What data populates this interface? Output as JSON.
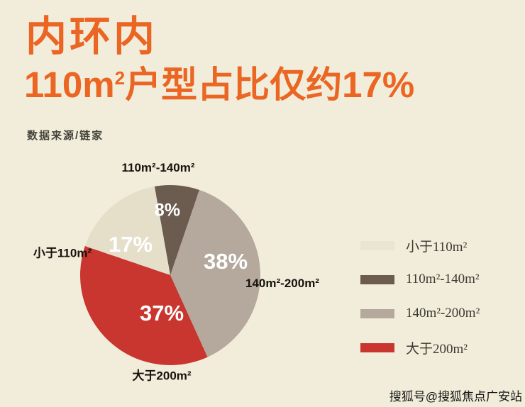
{
  "theme": {
    "background": "#f2edda",
    "accent": "#eb6523",
    "label_color": "#16120e",
    "pct_label_color": "#ffffff"
  },
  "header": {
    "title": "内环内",
    "subtitle_num": "110m",
    "subtitle_sup": "2",
    "subtitle_rest": "户型占比仅约17%",
    "source": "数据来源/链家"
  },
  "chart_data": {
    "type": "pie",
    "title": "内环内 110m²户型占比仅约17%",
    "source": "数据来源/链家",
    "start_angle_deg": -10,
    "direction": "clockwise",
    "slices": [
      {
        "label": "110m²-140m²",
        "value": 8,
        "pct_label": "8%",
        "color": "#6c5b4f"
      },
      {
        "label": "140m²-200m²",
        "value": 38,
        "pct_label": "38%",
        "color": "#b5a99d"
      },
      {
        "label": "大于200m²",
        "value": 37,
        "pct_label": "37%",
        "color": "#c9362f"
      },
      {
        "label": "小于110m²",
        "value": 17,
        "pct_label": "17%",
        "color": "#e5dfca"
      }
    ],
    "legend": [
      {
        "label": "小于110m²",
        "color": "#e9e4d3"
      },
      {
        "label": "110m²-140m²",
        "color": "#6c5b4f"
      },
      {
        "label": "140m²-200m²",
        "color": "#b5a99d"
      },
      {
        "label": "大于200m²",
        "color": "#c9362f"
      }
    ],
    "legend_position": "right"
  },
  "footer": {
    "watermark": "搜狐号@搜狐焦点广安站"
  }
}
